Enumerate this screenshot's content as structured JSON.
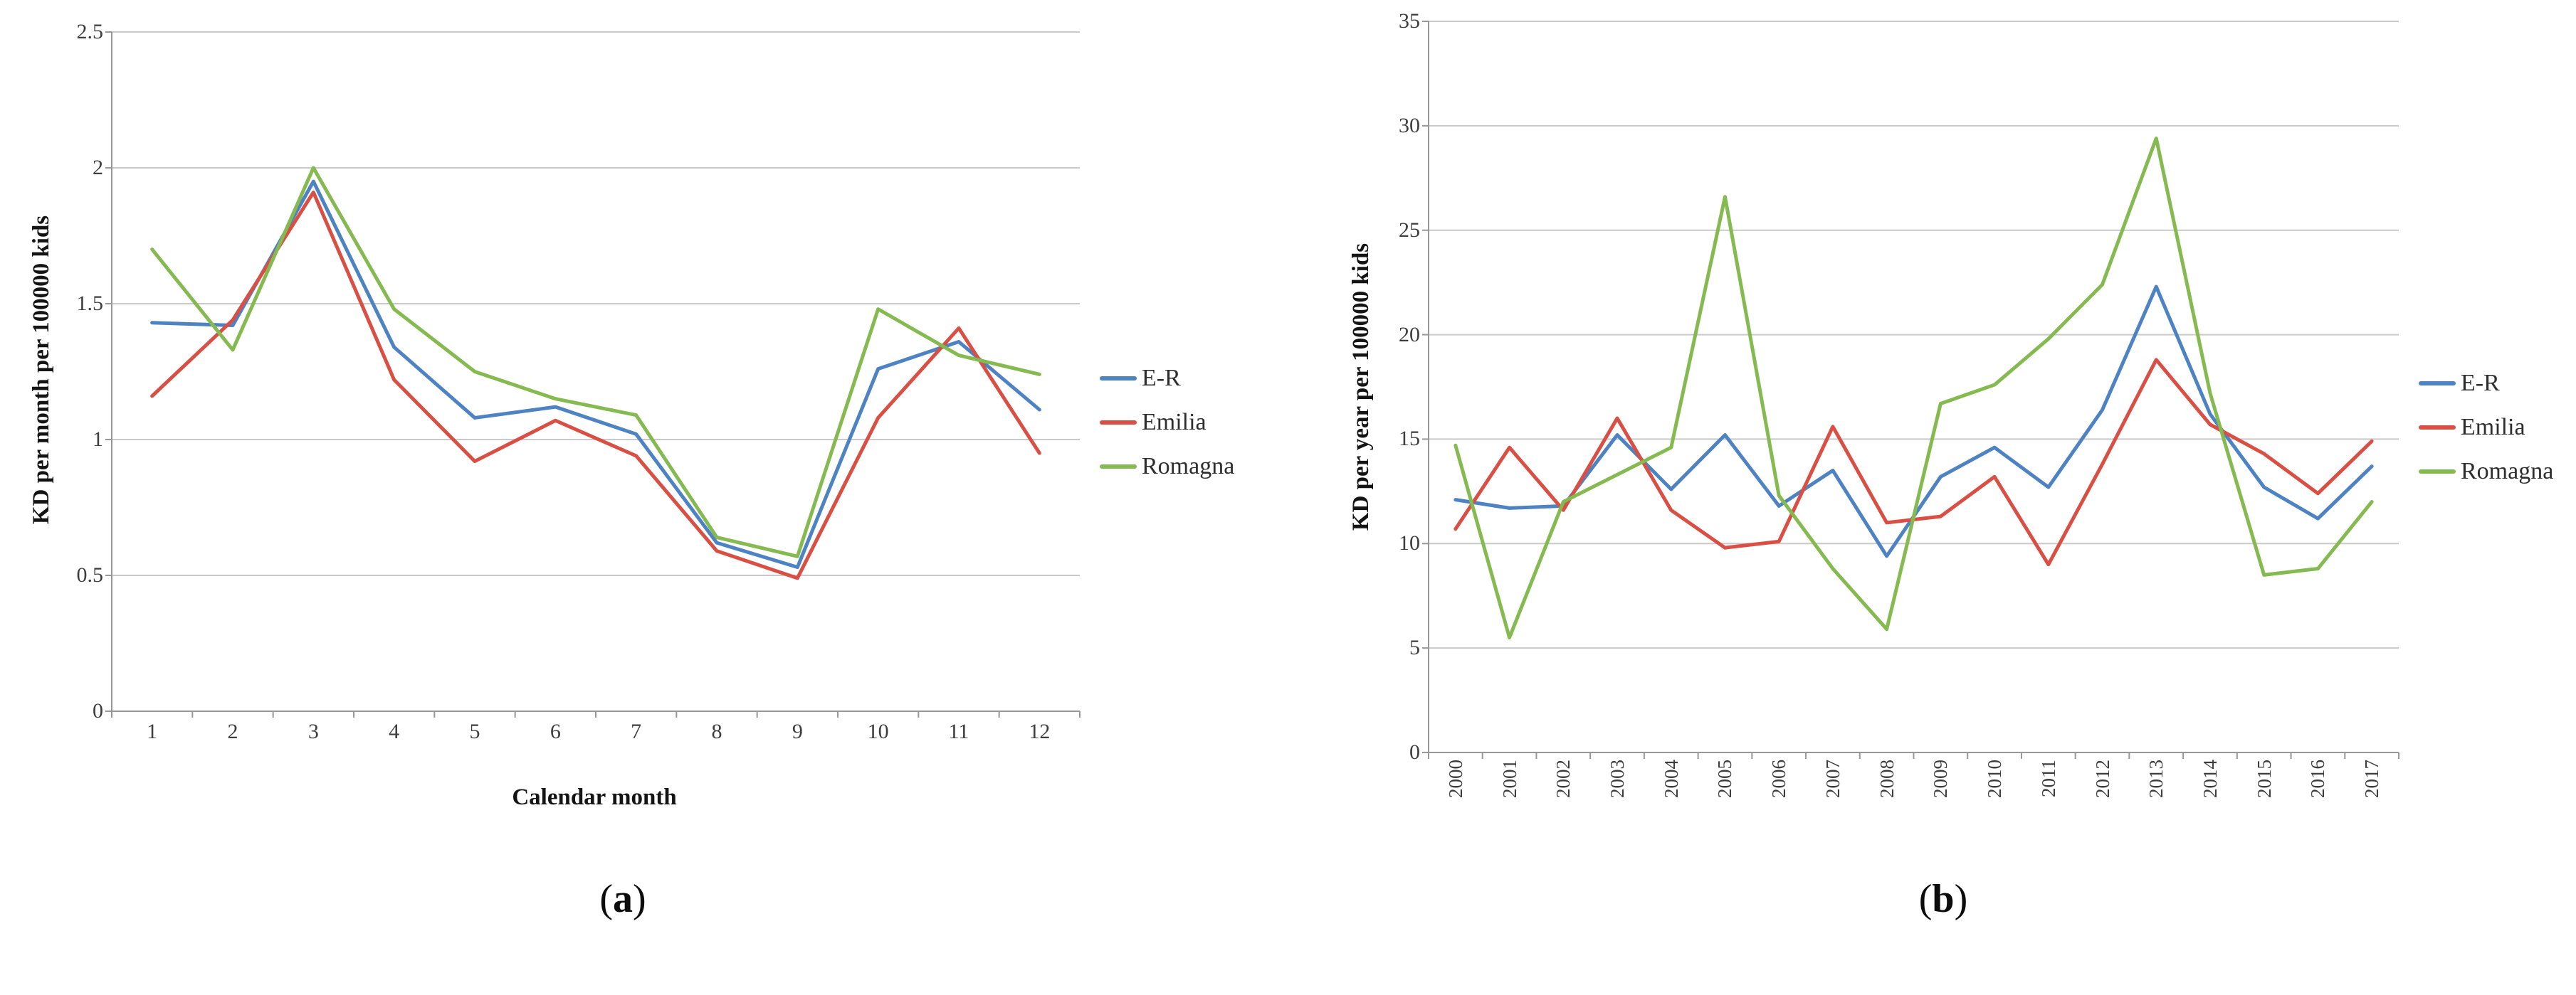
{
  "figure": {
    "captions": {
      "a": {
        "open": "(",
        "letter": "a",
        "close": ")"
      },
      "b": {
        "open": "(",
        "letter": "b",
        "close": ")"
      }
    }
  },
  "colors": {
    "er_blue": "#4d82c3",
    "emilia_red": "#d94f44",
    "romagna_green": "#85ba50",
    "gridline": "#c9c9c9",
    "axis": "#989898",
    "tick_text": "#3d3d3d",
    "title_text": "#141414"
  },
  "chart_data": [
    {
      "id": "a",
      "type": "line",
      "title": "",
      "ylabel": "KD per month per 100000 kids",
      "xlabel": "Calendar month",
      "ylim": [
        0,
        2.5
      ],
      "grid": true,
      "legend_position": "right",
      "yticks": [
        {
          "v": 0,
          "label": "0"
        },
        {
          "v": 0.5,
          "label": "0.5"
        },
        {
          "v": 1,
          "label": "1"
        },
        {
          "v": 1.5,
          "label": "1.5"
        },
        {
          "v": 2,
          "label": "2"
        },
        {
          "v": 2.5,
          "label": "2.5"
        }
      ],
      "categories": [
        "1",
        "2",
        "3",
        "4",
        "5",
        "6",
        "7",
        "8",
        "9",
        "10",
        "11",
        "12"
      ],
      "series": [
        {
          "name": "E-R",
          "color": "#4d82c3",
          "values": [
            1.43,
            1.42,
            1.95,
            1.34,
            1.08,
            1.12,
            1.02,
            0.62,
            0.53,
            1.26,
            1.36,
            1.11
          ]
        },
        {
          "name": "Emilia",
          "color": "#d94f44",
          "values": [
            1.16,
            1.44,
            1.91,
            1.22,
            0.92,
            1.07,
            0.94,
            0.59,
            0.49,
            1.08,
            1.41,
            0.95
          ]
        },
        {
          "name": "Romagna",
          "color": "#85ba50",
          "values": [
            1.7,
            1.33,
            2.0,
            1.48,
            1.25,
            1.15,
            1.09,
            0.64,
            0.57,
            1.48,
            1.31,
            1.24
          ]
        }
      ]
    },
    {
      "id": "b",
      "type": "line",
      "title": "",
      "ylabel": "KD per year per 100000 kids",
      "xlabel": "",
      "ylim": [
        0,
        35
      ],
      "grid": true,
      "legend_position": "right",
      "yticks": [
        {
          "v": 0,
          "label": "0"
        },
        {
          "v": 5,
          "label": "5"
        },
        {
          "v": 10,
          "label": "10"
        },
        {
          "v": 15,
          "label": "15"
        },
        {
          "v": 20,
          "label": "20"
        },
        {
          "v": 25,
          "label": "25"
        },
        {
          "v": 30,
          "label": "30"
        },
        {
          "v": 35,
          "label": "35"
        }
      ],
      "categories": [
        "2000",
        "2001",
        "2002",
        "2003",
        "2004",
        "2005",
        "2006",
        "2007",
        "2008",
        "2009",
        "2010",
        "2011",
        "2012",
        "2013",
        "2014",
        "2015",
        "2016",
        "2017"
      ],
      "series": [
        {
          "name": "E-R",
          "color": "#4d82c3",
          "values": [
            12.1,
            11.7,
            11.8,
            15.2,
            12.6,
            15.2,
            11.8,
            13.5,
            9.4,
            13.2,
            14.6,
            12.7,
            16.4,
            22.3,
            16.2,
            12.7,
            11.2,
            13.7
          ]
        },
        {
          "name": "Emilia",
          "color": "#d94f44",
          "values": [
            10.7,
            14.6,
            11.6,
            16.0,
            11.6,
            9.8,
            10.1,
            15.6,
            11.0,
            11.3,
            13.2,
            9.0,
            13.8,
            18.8,
            15.7,
            14.3,
            12.4,
            14.9
          ]
        },
        {
          "name": "Romagna",
          "color": "#85ba50",
          "values": [
            14.7,
            5.5,
            12.0,
            13.3,
            14.6,
            26.6,
            12.3,
            8.8,
            5.9,
            16.7,
            17.6,
            19.8,
            22.4,
            29.4,
            17.2,
            8.5,
            8.8,
            12.0
          ]
        }
      ]
    }
  ]
}
